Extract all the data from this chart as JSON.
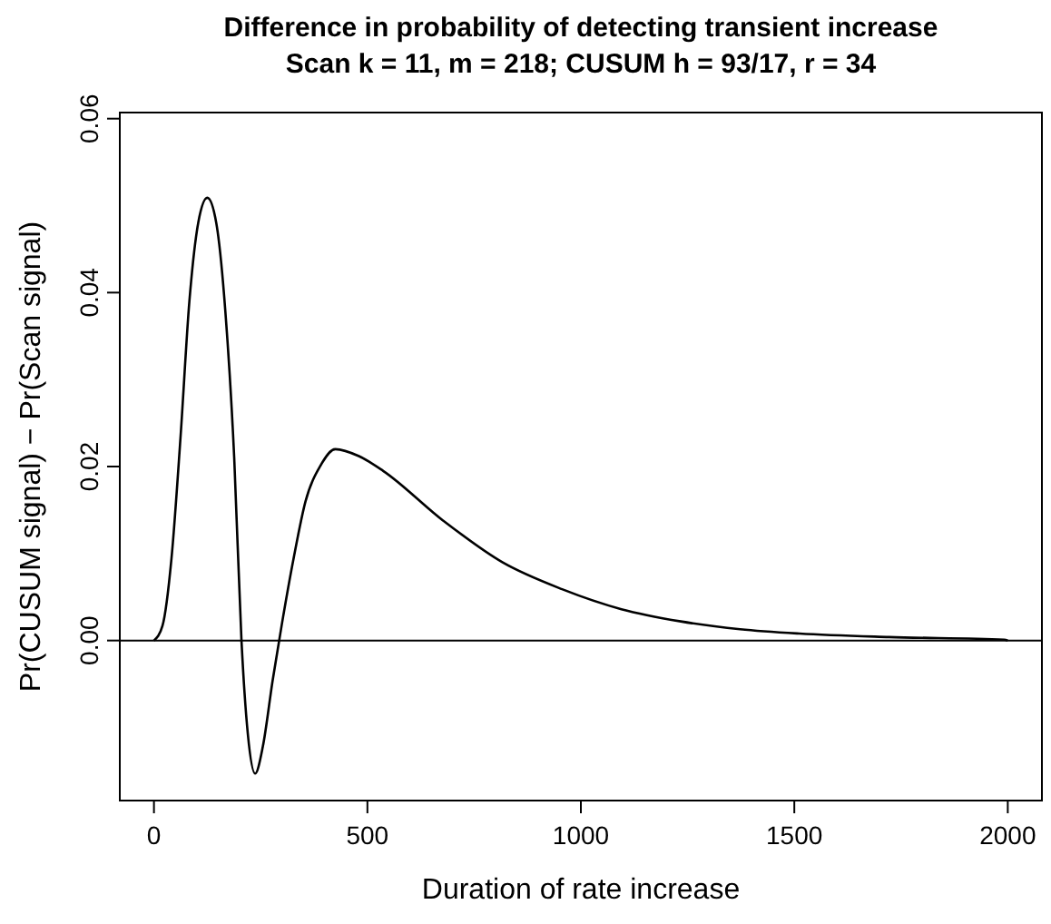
{
  "chart_data": {
    "type": "line",
    "title": "Difference in probability of detecting transient increase",
    "subtitle": "Scan k = 11, m = 218; CUSUM h = 93/17, r = 34",
    "xlabel": "Duration of rate increase",
    "ylabel": "Pr(CUSUM signal) − Pr(Scan signal)",
    "series": [
      {
        "color": "#000000",
        "x": [
          0,
          20,
          41,
          62,
          83,
          104,
          125,
          146,
          167,
          188,
          205,
          220,
          237,
          255,
          278,
          299,
          327,
          355,
          390,
          425,
          480,
          537,
          677,
          816,
          956,
          1095,
          1234,
          1373,
          1512,
          1722,
          1992,
          2000
        ],
        "values": [
          0,
          0.0017,
          0.0094,
          0.0232,
          0.039,
          0.0481,
          0.0509,
          0.048,
          0.038,
          0.021,
          0,
          -0.0108,
          -0.0153,
          -0.0122,
          -0.0046,
          0.0017,
          0.0094,
          0.016,
          0.0201,
          0.022,
          0.0212,
          0.0195,
          0.0138,
          0.009,
          0.0059,
          0.0036,
          0.0022,
          0.0013,
          0.0008,
          0.0004,
          0.0001,
          0
        ]
      }
    ],
    "xlim": [
      -80,
      2080
    ],
    "ylim": [
      -0.0184,
      0.0607
    ],
    "xticks": [
      0,
      500,
      1000,
      1500,
      2000
    ],
    "yticks": [
      {
        "value": 0,
        "label": "0.00"
      },
      0.02,
      0.04,
      0.06
    ],
    "ref_lines": [
      {
        "axis": "y",
        "value": 0,
        "color": "#000000"
      }
    ],
    "marker": "none",
    "line_style": "solid"
  }
}
